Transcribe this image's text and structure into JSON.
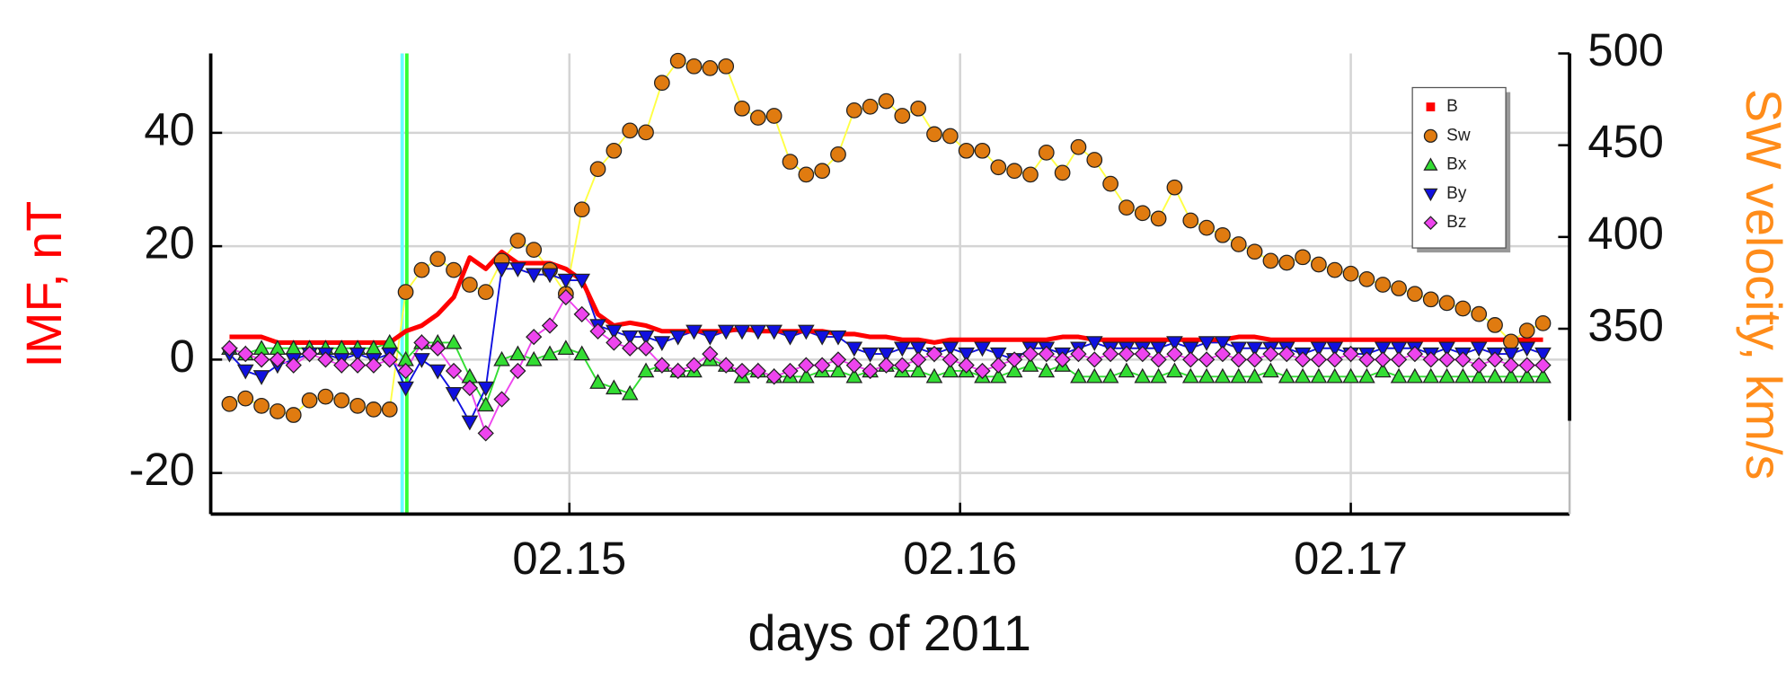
{
  "chart_data": {
    "type": "line",
    "xlabel": "days of 2011",
    "ylabel": "IMF, nT",
    "y2label": "SW velocity, km/s",
    "ylabel_color": "#ff0000",
    "y2label_color": "#ff8c1a",
    "xlim": [
      2.14082,
      2.1756
    ],
    "ylim": [
      -27.25,
      54
    ],
    "y2lim": [
      249,
      500
    ],
    "xticks": [
      {
        "value": 2.15,
        "label": "02.15"
      },
      {
        "value": 2.16,
        "label": "02.16"
      },
      {
        "value": 2.17,
        "label": "02.17"
      }
    ],
    "yticks": [
      -20,
      0,
      20,
      40
    ],
    "y2ticks": [
      350,
      400,
      450,
      500
    ],
    "grid": true,
    "legend": "upper right",
    "vlines": [
      {
        "x": 2.14572,
        "color": "#66ffff"
      },
      {
        "x": 2.14584,
        "color": "#33ff33"
      }
    ],
    "x": [
      2.1413,
      2.14171,
      2.14212,
      2.14253,
      2.14294,
      2.14335,
      2.14376,
      2.14417,
      2.14458,
      2.14499,
      2.1454,
      2.14581,
      2.14622,
      2.14663,
      2.14704,
      2.14745,
      2.14786,
      2.14827,
      2.14868,
      2.14909,
      2.1495,
      2.14991,
      2.15032,
      2.15073,
      2.15114,
      2.15155,
      2.15196,
      2.15237,
      2.15278,
      2.15319,
      2.1536,
      2.15401,
      2.15442,
      2.15483,
      2.15524,
      2.15565,
      2.15606,
      2.15647,
      2.15688,
      2.15729,
      2.1577,
      2.15811,
      2.15852,
      2.15893,
      2.15934,
      2.15975,
      2.16016,
      2.16057,
      2.16098,
      2.16139,
      2.1618,
      2.16221,
      2.16262,
      2.16303,
      2.16344,
      2.16385,
      2.16426,
      2.16467,
      2.16508,
      2.16549,
      2.1659,
      2.16631,
      2.16672,
      2.16713,
      2.16754,
      2.16795,
      2.16836,
      2.16877,
      2.16918,
      2.16959,
      2.17,
      2.17041,
      2.17082,
      2.17123,
      2.17164,
      2.17205,
      2.17246,
      2.17287,
      2.17328,
      2.17369,
      2.1741,
      2.17451,
      2.17492
    ],
    "series": [
      {
        "name": "B",
        "color": "#ff0000",
        "line_color": "#ff0000",
        "marker": "square-legend",
        "axis": "y",
        "values": [
          4,
          4,
          4,
          3,
          3,
          3,
          3,
          3,
          3,
          3,
          3,
          5,
          6,
          8,
          11,
          18,
          16,
          19,
          17,
          17,
          17,
          16,
          14,
          8,
          6,
          6.5,
          6,
          5,
          5,
          5,
          5,
          5,
          5.5,
          5,
          5,
          5,
          5,
          5,
          4.5,
          4.5,
          4,
          4,
          3.5,
          3.5,
          3,
          3.5,
          3.5,
          3.5,
          3.5,
          3.5,
          3.5,
          3.5,
          4,
          4,
          3.5,
          3.5,
          3.5,
          3.5,
          3.5,
          3.5,
          3.5,
          3.5,
          3.5,
          4,
          4,
          3.5,
          3.5,
          3.5,
          3.5,
          3.5,
          3.5,
          3.5,
          3.5,
          3.5,
          3.5,
          3.5,
          3.5,
          3.5,
          3.5,
          3.5,
          3.5,
          3.5,
          3.5
        ]
      },
      {
        "name": "Sw",
        "color": "#e07b10",
        "line_color": "#ffff44",
        "marker": "circle",
        "axis": "y2",
        "values": [
          309,
          312,
          308,
          305,
          303,
          311,
          313,
          311,
          308,
          306,
          306,
          370,
          382,
          388,
          382,
          374,
          370,
          387,
          398,
          393,
          382,
          369,
          415,
          437,
          447,
          458,
          457,
          484,
          496,
          493,
          492,
          493,
          470,
          465,
          466,
          441,
          434,
          436,
          445,
          469,
          471,
          474,
          466,
          470,
          456,
          455,
          447,
          447,
          438,
          436,
          434,
          446,
          435,
          449,
          442,
          429,
          416,
          413,
          410,
          427,
          409,
          405,
          401,
          396,
          392,
          387,
          386,
          389,
          385,
          382,
          380,
          377,
          374,
          372,
          369,
          366,
          364,
          361,
          358,
          352,
          343,
          349,
          353
        ]
      },
      {
        "name": "Bx",
        "color": "#33dd33",
        "line_color": "#33dd33",
        "marker": "triangle-up",
        "axis": "y",
        "values": [
          2,
          1,
          2,
          2,
          2,
          2,
          2,
          2,
          2,
          2,
          3,
          0,
          3,
          3,
          3,
          -3,
          -8,
          0,
          1,
          0,
          1,
          2,
          1,
          -4,
          -5,
          -6,
          -2,
          -1,
          -2,
          -2,
          0,
          -1,
          -3,
          -2,
          -3,
          -3,
          -3,
          -2,
          -2,
          -3,
          -2,
          -1,
          -2,
          -2,
          -3,
          -2,
          -2,
          -3,
          -3,
          -2,
          -1,
          -2,
          -1,
          -3,
          -3,
          -3,
          -2,
          -3,
          -3,
          -2,
          -3,
          -3,
          -3,
          -3,
          -3,
          -2,
          -3,
          -3,
          -3,
          -3,
          -3,
          -3,
          -2,
          -3,
          -3,
          -3,
          -3,
          -3,
          -3,
          -3,
          -3,
          -3,
          -3
        ]
      },
      {
        "name": "By",
        "color": "#1010e0",
        "line_color": "#1010e0",
        "marker": "triangle-down",
        "axis": "y",
        "values": [
          1,
          -2,
          -3,
          -1,
          0,
          1,
          1,
          0,
          1,
          0,
          1,
          -5,
          0,
          -2,
          -6,
          -11,
          -5,
          16,
          16,
          15,
          15,
          14,
          14,
          6,
          5,
          4,
          4,
          3,
          4,
          5,
          4,
          5,
          5,
          5,
          5,
          4,
          5,
          4,
          4,
          2,
          1,
          1,
          2,
          2,
          1,
          2,
          1,
          2,
          1,
          0,
          2,
          2,
          1,
          2,
          3,
          2,
          2,
          2,
          2,
          3,
          2,
          3,
          3,
          2,
          2,
          2,
          2,
          1,
          2,
          2,
          1,
          1,
          2,
          2,
          2,
          1,
          2,
          1,
          2,
          1,
          1,
          2,
          1
        ]
      },
      {
        "name": "Bz",
        "color": "#ee44ee",
        "line_color": "#ee44ee",
        "marker": "diamond",
        "axis": "y",
        "values": [
          2,
          1,
          0,
          0,
          -1,
          1,
          0,
          -1,
          -1,
          -1,
          0,
          -2,
          3,
          2,
          -2,
          -5,
          -13,
          -7,
          -2,
          4,
          6,
          11,
          8,
          5,
          3,
          2,
          2,
          -1,
          -2,
          -1,
          1,
          -1,
          -2,
          -2,
          -3,
          -2,
          -1,
          -1,
          0,
          -1,
          -2,
          -1,
          -1,
          0,
          1,
          0,
          -1,
          -2,
          -1,
          0,
          1,
          1,
          0,
          1,
          0,
          1,
          1,
          1,
          0,
          1,
          0,
          0,
          1,
          0,
          0,
          1,
          1,
          0,
          0,
          0,
          1,
          0,
          0,
          0,
          1,
          0,
          0,
          0,
          -1,
          0,
          -1,
          -1,
          -1
        ]
      }
    ]
  }
}
